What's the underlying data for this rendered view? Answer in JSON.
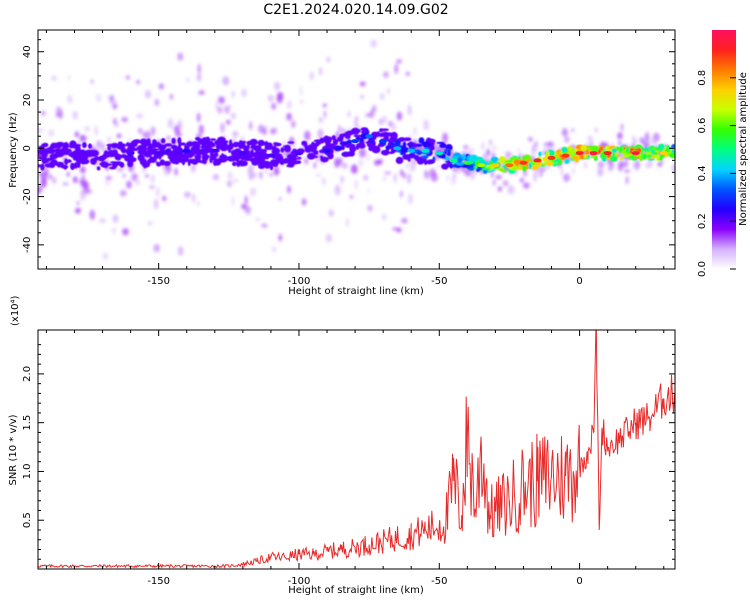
{
  "title": "C2E1.2024.020.14.09.G02",
  "chart_data": [
    {
      "type": "heatmap",
      "xlabel": "Height of straight line (km)",
      "ylabel": "Frequency (Hz)",
      "xlim": [
        -193,
        34
      ],
      "ylim": [
        -50,
        49
      ],
      "xticks": [
        -150,
        -100,
        -50,
        0
      ],
      "yticks": [
        -40,
        -20,
        0,
        20,
        40
      ],
      "colorbar": {
        "label": "Normalized spectral amplitude",
        "range": [
          0,
          1
        ],
        "ticks": [
          0.0,
          0.2,
          0.4,
          0.6,
          0.8
        ],
        "colormap": [
          "#ffffff",
          "#d4b0ff",
          "#8a00ff",
          "#2200ff",
          "#0055ff",
          "#00d4ff",
          "#00ff80",
          "#33ff00",
          "#c8ff00",
          "#ffd000",
          "#ff7a00",
          "#ff2020",
          "#ff1060"
        ]
      },
      "ridge": {
        "x": [
          -193,
          -180,
          -170,
          -160,
          -150,
          -140,
          -130,
          -120,
          -110,
          -100,
          -90,
          -80,
          -75,
          -70,
          -65,
          -60,
          -55,
          -50,
          -45,
          -40,
          -35,
          -30,
          -25,
          -20,
          -15,
          -10,
          -5,
          0,
          5,
          10,
          20,
          30
        ],
        "frequency": [
          -3,
          -3,
          -4,
          -2,
          -2,
          -1,
          -1,
          -2,
          -3,
          -2,
          -1,
          3,
          5,
          3,
          0,
          -1,
          -1,
          -2,
          -5,
          -6,
          -7,
          -7,
          -7,
          -6,
          -5,
          -4,
          -3,
          -2,
          -2,
          -2,
          -2,
          -2
        ],
        "amplitude": [
          0.15,
          0.2,
          0.2,
          0.22,
          0.22,
          0.25,
          0.22,
          0.22,
          0.22,
          0.22,
          0.25,
          0.3,
          0.35,
          0.3,
          0.4,
          0.4,
          0.45,
          0.45,
          0.5,
          0.55,
          0.65,
          0.75,
          0.85,
          0.9,
          0.92,
          0.9,
          0.9,
          0.92,
          0.95,
          0.92,
          0.95,
          0.75
        ]
      }
    },
    {
      "type": "line",
      "xlabel": "Height of straight line (km)",
      "ylabel": "SNR (10 * v/v)",
      "y_multiplier": "(x10⁴)",
      "xlim": [
        -193,
        34
      ],
      "ylim": [
        0,
        2.45
      ],
      "xticks": [
        -150,
        -100,
        -50,
        0
      ],
      "yticks": [
        0.5,
        1.0,
        1.5,
        2.0
      ],
      "color": "#e82c2c",
      "series": [
        {
          "x": [
            -193,
            -180,
            -160,
            -140,
            -125,
            -120,
            -115,
            -110,
            -105,
            -100,
            -95,
            -90,
            -85,
            -80,
            -75,
            -70,
            -65,
            -60,
            -55,
            -50,
            -47,
            -45,
            -42,
            -40,
            -37,
            -35,
            -32,
            -30,
            -25,
            -20,
            -15,
            -10,
            -5,
            0,
            3,
            5,
            6,
            7,
            8,
            10,
            15,
            20,
            25,
            30,
            34
          ],
          "y": [
            0.03,
            0.03,
            0.03,
            0.03,
            0.03,
            0.05,
            0.08,
            0.12,
            0.12,
            0.15,
            0.15,
            0.18,
            0.2,
            0.22,
            0.25,
            0.28,
            0.32,
            0.35,
            0.4,
            0.45,
            0.55,
            0.9,
            0.55,
            1.35,
            0.6,
            1.25,
            0.55,
            0.6,
            0.7,
            0.85,
            0.9,
            0.95,
            0.95,
            1.05,
            1.2,
            1.4,
            2.45,
            0.4,
            1.45,
            1.25,
            1.35,
            1.5,
            1.55,
            1.75,
            1.8
          ]
        }
      ]
    }
  ]
}
